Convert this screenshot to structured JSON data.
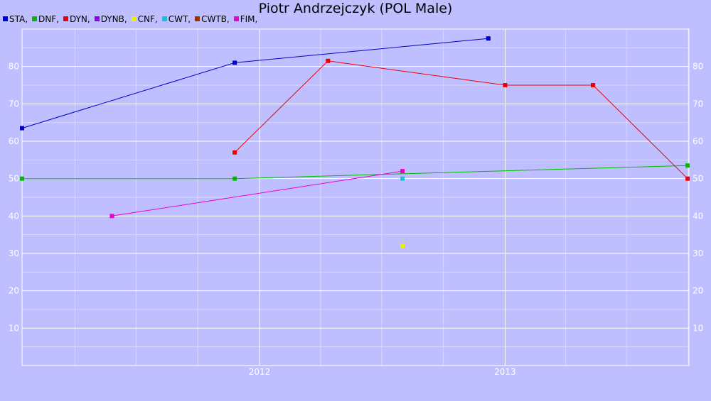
{
  "chart_data": {
    "type": "line",
    "title": "Piotr Andrzejczyk (POL Male)",
    "xlabel": "",
    "ylabel": "",
    "x_range": [
      "2011-01-12",
      "2013-10-02"
    ],
    "ylim": [
      0,
      90
    ],
    "y_ticks": [
      10,
      20,
      30,
      40,
      50,
      60,
      70,
      80
    ],
    "x_ticks": [
      {
        "date": "2012-01-01",
        "label": "2012"
      },
      {
        "date": "2013-01-01",
        "label": "2013"
      }
    ],
    "grid": true,
    "legend_position": "top-left",
    "series": [
      {
        "name": "STA",
        "color": "#0000cc",
        "points": [
          {
            "x": "2011-01-12",
            "y": 63.5
          },
          {
            "x": "2011-11-25",
            "y": 81
          },
          {
            "x": "2012-12-07",
            "y": 87.5
          }
        ]
      },
      {
        "name": "DNF",
        "color": "#00bb00",
        "points": [
          {
            "x": "2011-01-12",
            "y": 50
          },
          {
            "x": "2011-11-25",
            "y": 50
          },
          {
            "x": "2013-09-30",
            "y": 53.5
          }
        ]
      },
      {
        "name": "DYN",
        "color": "#ee0000",
        "points": [
          {
            "x": "2011-11-25",
            "y": 57
          },
          {
            "x": "2012-04-12",
            "y": 81.5
          },
          {
            "x": "2013-01-01",
            "y": 75
          },
          {
            "x": "2013-05-12",
            "y": 75
          },
          {
            "x": "2013-09-30",
            "y": 50
          }
        ]
      },
      {
        "name": "DYNB",
        "color": "#8800ee",
        "points": []
      },
      {
        "name": "CNF",
        "color": "#eeee00",
        "points": [
          {
            "x": "2012-08-01",
            "y": 32
          }
        ]
      },
      {
        "name": "CWT",
        "color": "#22bbdd",
        "points": [
          {
            "x": "2012-08-01",
            "y": 50
          }
        ]
      },
      {
        "name": "CWTB",
        "color": "#993300",
        "points": []
      },
      {
        "name": "FIM",
        "color": "#ee00cc",
        "points": [
          {
            "x": "2011-05-26",
            "y": 40
          },
          {
            "x": "2012-08-01",
            "y": 52
          }
        ]
      }
    ]
  }
}
